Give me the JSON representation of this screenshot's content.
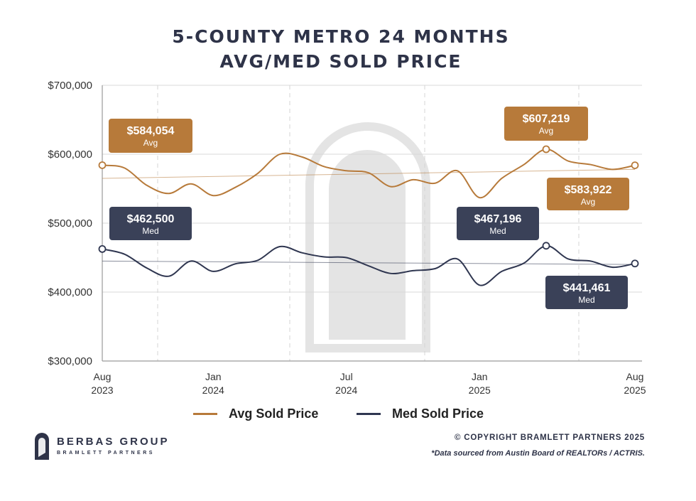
{
  "header": {
    "title_line1": "5-COUNTY METRO 24 MONTHS",
    "title_line2": "AVG/MED SOLD PRICE"
  },
  "chart_data": {
    "type": "line",
    "title": "5-COUNTY METRO 24 MONTHS AVG/MED SOLD PRICE",
    "ylim": [
      300000,
      700000
    ],
    "y_ticks": [
      300000,
      400000,
      500000,
      600000,
      700000
    ],
    "y_tick_labels": [
      "$300,000",
      "$400,000",
      "$500,000",
      "$600,000",
      "$700,000"
    ],
    "x_ticks": [
      {
        "index": 0,
        "month": "Aug",
        "year": "2023"
      },
      {
        "index": 5,
        "month": "Jan",
        "year": "2024"
      },
      {
        "index": 11,
        "month": "Jul",
        "year": "2024"
      },
      {
        "index": 17,
        "month": "Jan",
        "year": "2025"
      },
      {
        "index": 24,
        "month": "Aug",
        "year": "2025"
      }
    ],
    "series": [
      {
        "name": "Avg Sold Price",
        "color": "#b77a3a",
        "values": [
          584054,
          580000,
          555000,
          543000,
          557000,
          540000,
          552000,
          572000,
          600000,
          596000,
          582000,
          576000,
          573000,
          553000,
          563000,
          558000,
          576000,
          537000,
          565000,
          585000,
          607219,
          590000,
          585000,
          578000,
          583922
        ],
        "trend": [
          565000,
          578000
        ]
      },
      {
        "name": "Med Sold Price",
        "color": "#2f3650",
        "values": [
          462500,
          455000,
          435000,
          423000,
          445000,
          430000,
          441000,
          446000,
          466000,
          457000,
          451000,
          450000,
          438000,
          427000,
          431000,
          434000,
          448000,
          410000,
          430000,
          442000,
          467196,
          448000,
          445000,
          436000,
          441461
        ],
        "trend": [
          445000,
          440000
        ]
      }
    ],
    "annotations": [
      {
        "value": "$584,054",
        "label": "Avg",
        "series": "avg"
      },
      {
        "value": "$607,219",
        "label": "Avg",
        "series": "avg"
      },
      {
        "value": "$583,922",
        "label": "Avg",
        "series": "avg"
      },
      {
        "value": "$462,500",
        "label": "Med",
        "series": "med"
      },
      {
        "value": "$467,196",
        "label": "Med",
        "series": "med"
      },
      {
        "value": "$441,461",
        "label": "Med",
        "series": "med"
      }
    ],
    "legend": [
      "Avg Sold Price",
      "Med Sold Price"
    ]
  },
  "legend": {
    "avg_label": "Avg Sold Price",
    "med_label": "Med Sold Price",
    "avg_color": "#b77a3a",
    "med_color": "#2f3650"
  },
  "footer": {
    "brand_name": "BERBAS GROUP",
    "brand_sub": "BRAMLETT PARTNERS",
    "copyright": "© COPYRIGHT BRAMLETT PARTNERS 2025",
    "source": "*Data sourced from Austin Board of REALTORs / ACTRIS."
  },
  "colors": {
    "avg_badge": "#b77a3a",
    "med_badge": "#3a4158",
    "grid": "#d9d9d9",
    "axis": "#9a9a9a",
    "watermark": "#e4e4e4"
  }
}
